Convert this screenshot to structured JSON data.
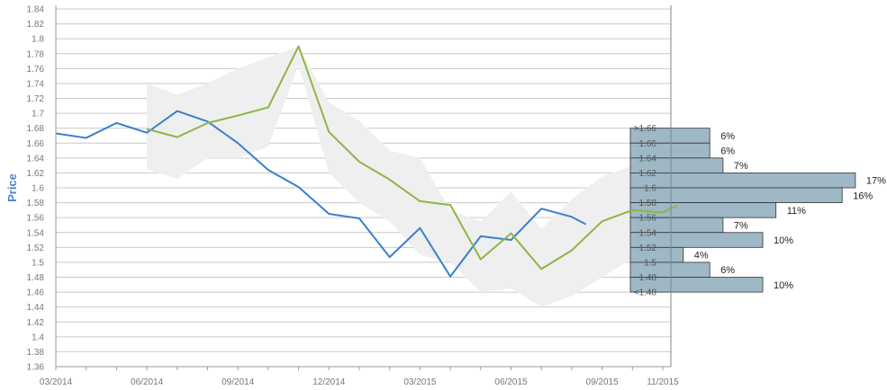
{
  "chart_data": {
    "type": "line",
    "ylabel": "Price",
    "ylim": [
      1.36,
      1.84
    ],
    "y_ticks": [
      "1.84",
      "1.82",
      "1.8",
      "1.78",
      "1.76",
      "1.74",
      "1.72",
      "1.7",
      "1.68",
      "1.66",
      "1.64",
      "1.62",
      "1.6",
      "1.58",
      "1.56",
      "1.54",
      "1.52",
      "1.5",
      "1.48",
      "1.46",
      "1.44",
      "1.42",
      "1.4",
      "1.38",
      "1.36"
    ],
    "x_tick_labels": [
      "03/2014",
      "06/2014",
      "09/2014",
      "12/2014",
      "03/2015",
      "06/2015",
      "09/2015",
      "11/2015"
    ],
    "grid": true,
    "series": [
      {
        "color": "#3a7fcf",
        "x": [
          "2014-03",
          "2014-04",
          "2014-05",
          "2014-06",
          "2014-07",
          "2014-08",
          "2014-09",
          "2014-10",
          "2014-11",
          "2014-12",
          "2015-01",
          "2015-02",
          "2015-03",
          "2015-04",
          "2015-05",
          "2015-06",
          "2015-07",
          "2015-08",
          "2015-08-15"
        ],
        "values": [
          1.673,
          1.667,
          1.687,
          1.674,
          1.703,
          1.689,
          1.66,
          1.624,
          1.601,
          1.565,
          1.559,
          1.507,
          1.546,
          1.481,
          1.535,
          1.53,
          1.572,
          1.561,
          1.551
        ]
      },
      {
        "color": "#8db547",
        "x": [
          "2014-06",
          "2014-07",
          "2014-08",
          "2014-09",
          "2014-10",
          "2014-11",
          "2014-12",
          "2015-01",
          "2015-02",
          "2015-03",
          "2015-04",
          "2015-05",
          "2015-06",
          "2015-07",
          "2015-08",
          "2015-09",
          "2015-10",
          "2015-11",
          "2015-11-15"
        ],
        "values": [
          1.679,
          1.668,
          1.687,
          1.697,
          1.708,
          1.79,
          1.675,
          1.635,
          1.611,
          1.582,
          1.577,
          1.504,
          1.539,
          1.491,
          1.516,
          1.555,
          1.57,
          1.567,
          1.576
        ]
      }
    ],
    "band": {
      "color": "#efefef",
      "x": [
        "2014-06",
        "2014-07",
        "2014-08",
        "2014-09",
        "2014-10",
        "2014-11",
        "2014-12",
        "2015-01",
        "2015-02",
        "2015-03",
        "2015-04",
        "2015-05",
        "2015-06",
        "2015-07",
        "2015-08",
        "2015-09",
        "2015-10",
        "2015-11"
      ],
      "upper": [
        1.74,
        1.725,
        1.74,
        1.76,
        1.775,
        1.79,
        1.715,
        1.69,
        1.65,
        1.64,
        1.57,
        1.555,
        1.595,
        1.545,
        1.585,
        1.615,
        1.63,
        1.64
      ],
      "lower": [
        1.625,
        1.612,
        1.64,
        1.64,
        1.655,
        1.765,
        1.62,
        1.58,
        1.555,
        1.51,
        1.5,
        1.46,
        1.465,
        1.44,
        1.455,
        1.48,
        1.505,
        1.51
      ]
    },
    "histogram": {
      "color": "#9eb8c6",
      "bins": [
        {
          "label": ">1.66",
          "y": 1.66,
          "pct": 6,
          "pct_label": "6%"
        },
        {
          "label": "1.66",
          "y": 1.64,
          "pct": 6,
          "pct_label": "6%"
        },
        {
          "label": "1.64",
          "y": 1.62,
          "pct": 7,
          "pct_label": "7%"
        },
        {
          "label": "1.62",
          "y": 1.6,
          "pct": 17,
          "pct_label": "17%"
        },
        {
          "label": "1.6",
          "y": 1.58,
          "pct": 16,
          "pct_label": "16%"
        },
        {
          "label": "1.58",
          "y": 1.56,
          "pct": 11,
          "pct_label": "11%"
        },
        {
          "label": "1.56",
          "y": 1.54,
          "pct": 7,
          "pct_label": "7%"
        },
        {
          "label": "1.54",
          "y": 1.52,
          "pct": 10,
          "pct_label": "10%"
        },
        {
          "label": "1.52",
          "y": 1.5,
          "pct": 4,
          "pct_label": "4%"
        },
        {
          "label": "1.5",
          "y": 1.48,
          "pct": 6,
          "pct_label": "6%"
        },
        {
          "label": "1.48",
          "y": 1.46,
          "pct": 10,
          "pct_label": "10%"
        }
      ],
      "extra_label": "<1.48"
    }
  }
}
